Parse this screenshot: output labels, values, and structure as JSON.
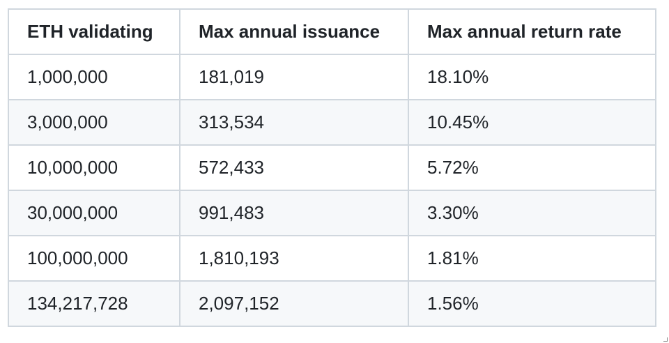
{
  "table": {
    "headers": [
      "ETH validating",
      "Max annual issuance",
      "Max annual return rate"
    ],
    "rows": [
      [
        "1,000,000",
        "181,019",
        "18.10%"
      ],
      [
        "3,000,000",
        "313,534",
        "10.45%"
      ],
      [
        "10,000,000",
        "572,433",
        "5.72%"
      ],
      [
        "30,000,000",
        "991,483",
        "3.30%"
      ],
      [
        "100,000,000",
        "1,810,193",
        "1.81%"
      ],
      [
        "134,217,728",
        "2,097,152",
        "1.56%"
      ]
    ]
  },
  "colors": {
    "border": "#d0d7de",
    "row_alt": "#f6f8fa",
    "text": "#1f2328"
  }
}
